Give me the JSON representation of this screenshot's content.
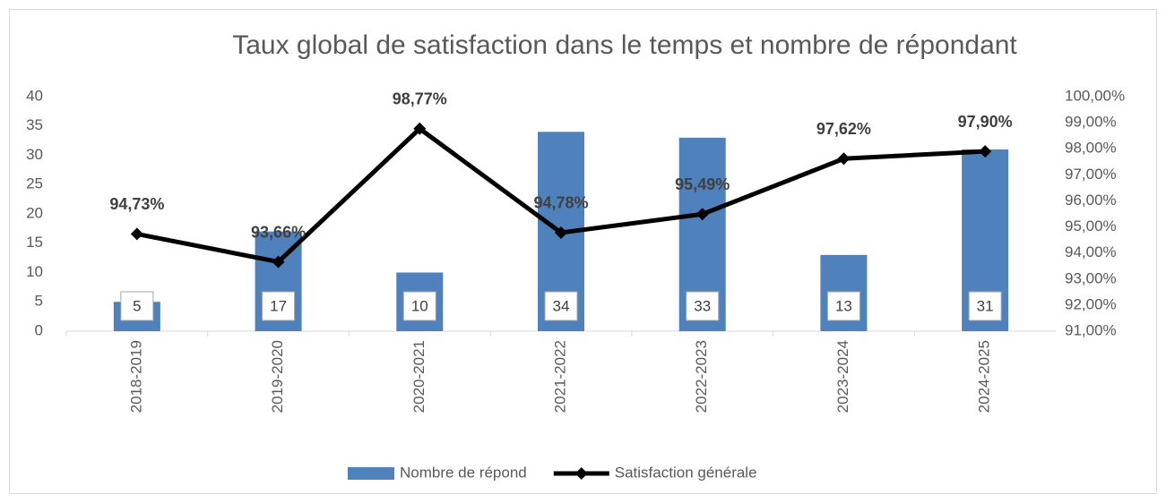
{
  "chart_data": {
    "type": "combo",
    "title": "Taux global de satisfaction dans le temps et nombre de répondant",
    "categories": [
      "2018-2019",
      "2019-2020",
      "2020-2021",
      "2021-2022",
      "2022-2023",
      "2023-2024",
      "2024-2025"
    ],
    "series": [
      {
        "name": "Nombre de répond",
        "type": "bar",
        "color": "#4f81bd",
        "values": [
          5,
          17,
          10,
          34,
          33,
          13,
          31
        ]
      },
      {
        "name": "Satisfaction générale",
        "type": "line",
        "axis": "y2",
        "color": "#000000",
        "values": [
          94.73,
          93.66,
          98.77,
          94.78,
          95.49,
          97.62,
          97.9
        ],
        "value_labels": [
          "94,73%",
          "93,66%",
          "98,77%",
          "94,78%",
          "95,49%",
          "97,62%",
          "97,90%"
        ]
      }
    ],
    "ylim": [
      0,
      40
    ],
    "yticks": [
      0,
      5,
      10,
      15,
      20,
      25,
      30,
      35,
      40
    ],
    "y2lim": [
      91,
      100
    ],
    "y2ticks": [
      {
        "value": 91,
        "label": "91,00%"
      },
      {
        "value": 92,
        "label": "92,00%"
      },
      {
        "value": 93,
        "label": "93,00%"
      },
      {
        "value": 94,
        "label": "94,00%"
      },
      {
        "value": 95,
        "label": "95,00%"
      },
      {
        "value": 96,
        "label": "96,00%"
      },
      {
        "value": 97,
        "label": "97,00%"
      },
      {
        "value": 98,
        "label": "98,00%"
      },
      {
        "value": 99,
        "label": "99,00%"
      },
      {
        "value": 100,
        "label": "100,00%"
      }
    ],
    "legend": "bottom"
  }
}
